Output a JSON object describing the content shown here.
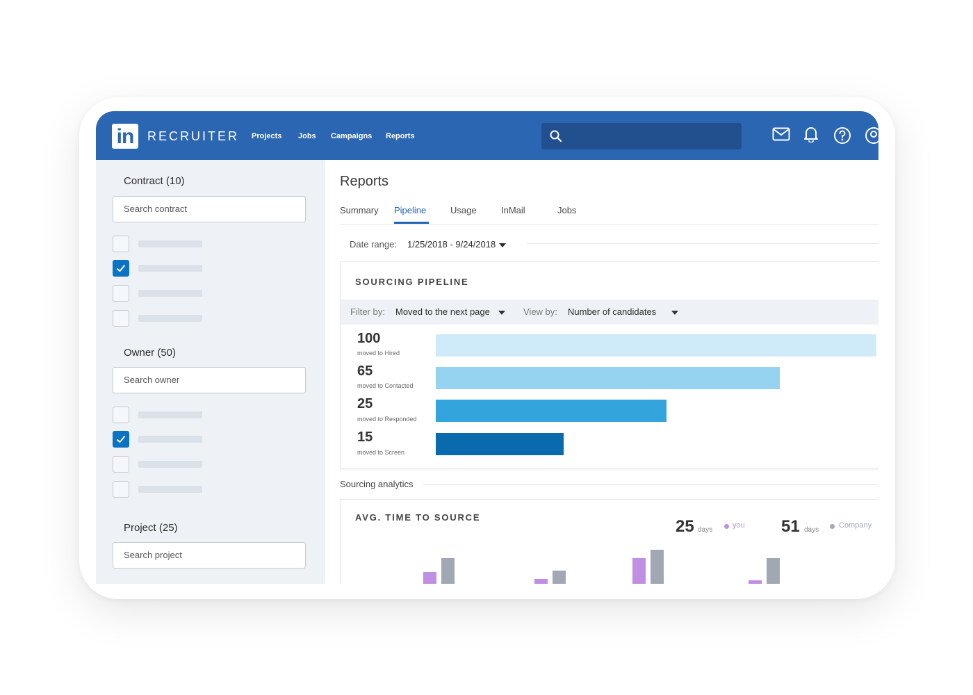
{
  "app": {
    "logo_text": "in",
    "brand": "RECRUITER",
    "nav": [
      "Projects",
      "Jobs",
      "Campaigns",
      "Reports"
    ]
  },
  "sidebar": {
    "groups": [
      {
        "label": "Contract (10)",
        "search_placeholder": "Search contract",
        "checked": [
          false,
          true,
          false,
          false
        ]
      },
      {
        "label": "Owner (50)",
        "search_placeholder": "Search owner",
        "checked": [
          false,
          true,
          false,
          false
        ]
      },
      {
        "label": "Project (25)",
        "search_placeholder": "Search project"
      }
    ]
  },
  "main": {
    "title": "Reports",
    "tabs": [
      "Summary",
      "Pipeline",
      "Usage",
      "InMail",
      "Jobs"
    ],
    "active_tab": "Pipeline",
    "date_range_label": "Date range:",
    "date_range_value": "1/25/2018 - 9/24/2018"
  },
  "pipeline": {
    "title": "SOURCING PIPELINE",
    "filter_label": "Filter by:",
    "filter_value": "Moved to the next page",
    "view_label": "View by:",
    "view_value": "Number of candidates",
    "rows": [
      {
        "value": "100",
        "label": "moved to Hired",
        "fraction": 1.0,
        "color": "#cfebfa"
      },
      {
        "value": "65",
        "label": "moved to Contacted",
        "fraction": 0.78,
        "color": "#96d3f1"
      },
      {
        "value": "25",
        "label": "moved to Responded",
        "fraction": 0.524,
        "color": "#33a4dc"
      },
      {
        "value": "15",
        "label": "moved to Screen",
        "fraction": 0.29,
        "color": "#0a6aae"
      }
    ]
  },
  "analytics": {
    "section_label": "Sourcing analytics",
    "title": "AVG. TIME TO SOURCE",
    "you_value": "25",
    "you_unit": "days",
    "you_label": "you",
    "company_value": "51",
    "company_unit": "days",
    "company_label": "Company",
    "you_color": "#c08fe3",
    "company_color": "#a1a8b4"
  },
  "chart_data": {
    "type": "bar",
    "title": "AVG. TIME TO SOURCE",
    "series": [
      {
        "name": "you",
        "values": [
          18,
          8,
          38,
          6
        ]
      },
      {
        "name": "Company",
        "values": [
          38,
          20,
          50,
          38
        ]
      }
    ]
  }
}
